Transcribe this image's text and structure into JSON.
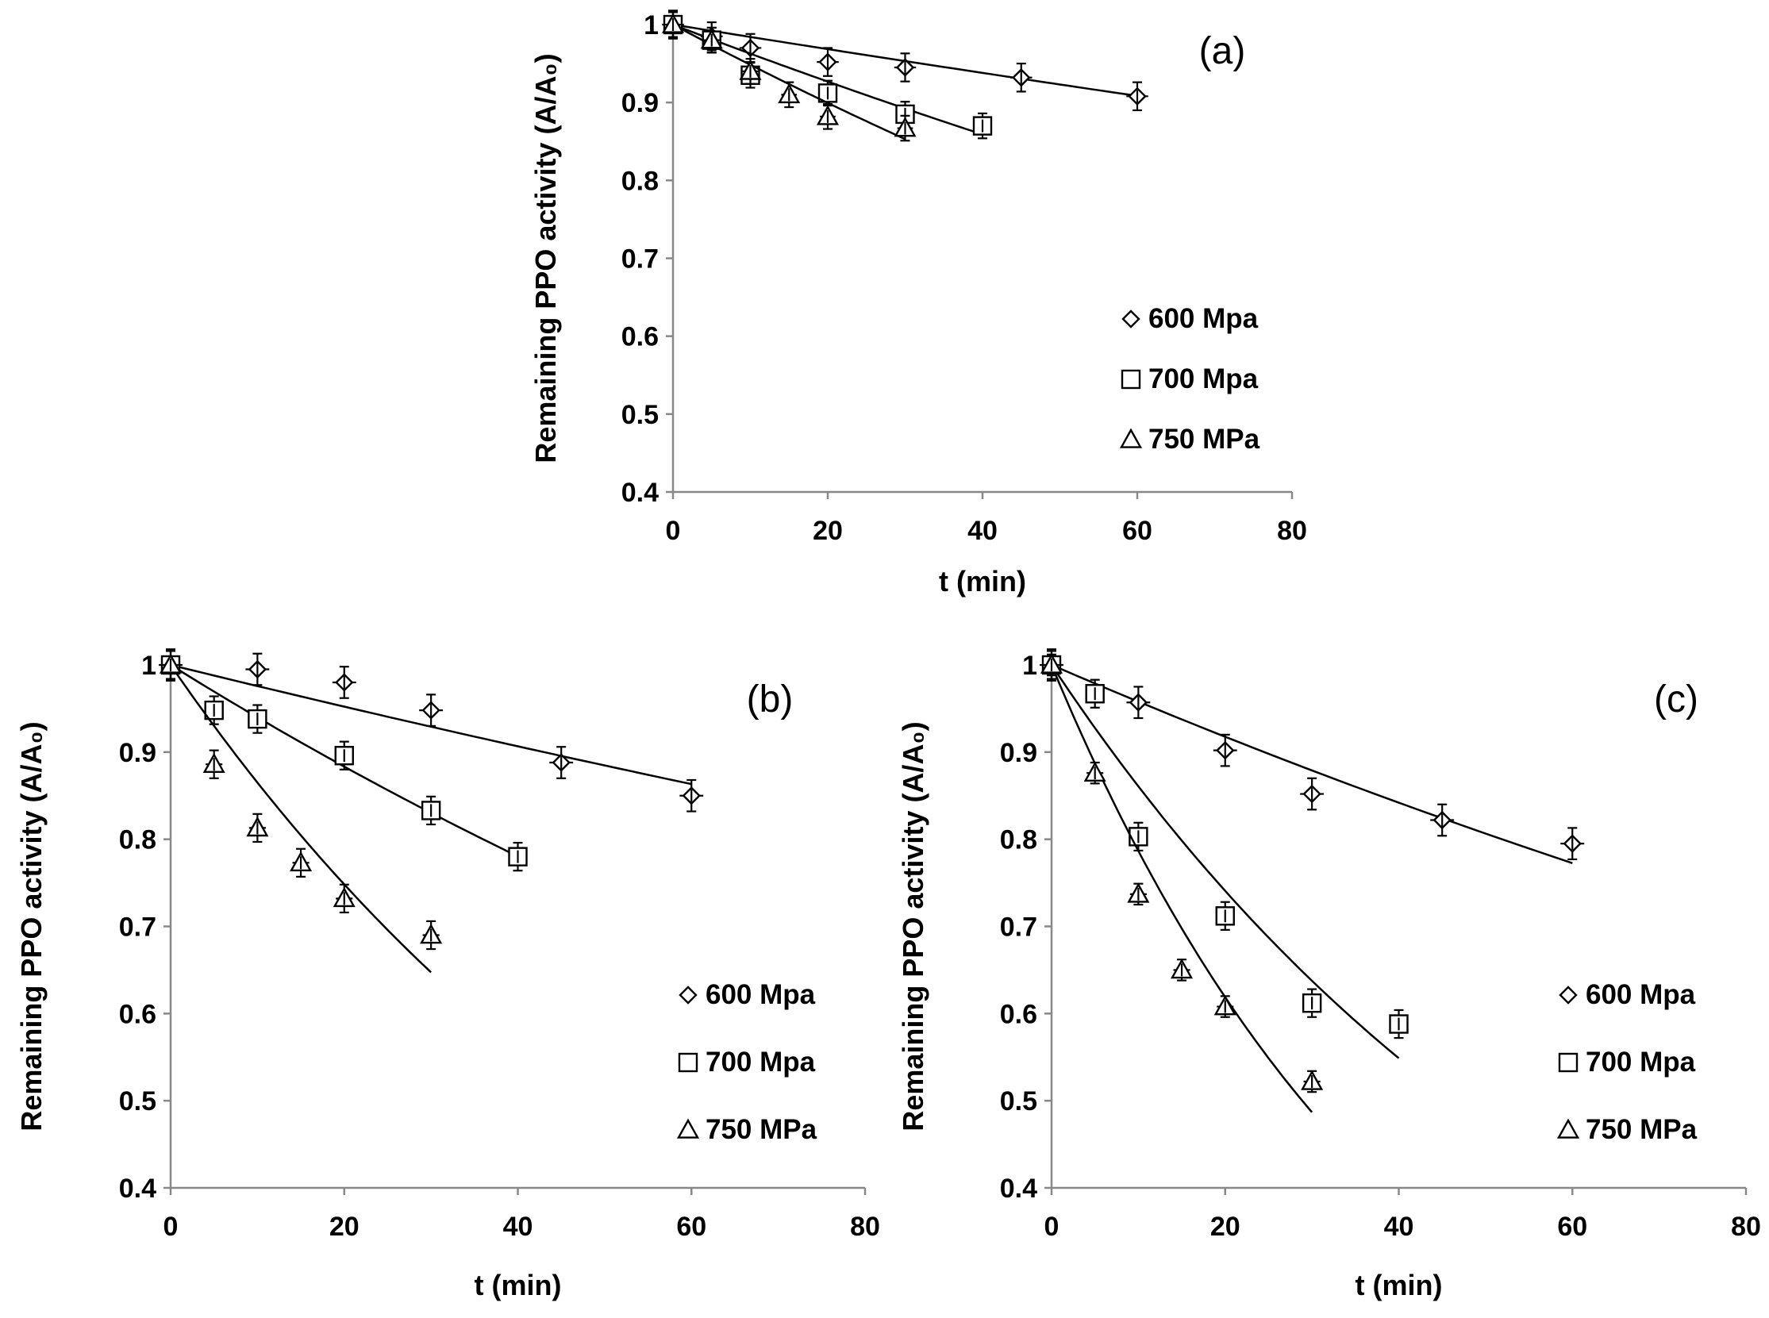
{
  "chart_data": [
    {
      "panel": "(a)",
      "type": "scatter",
      "xlabel": "t (min)",
      "ylabel": "Remaining PPO activity (A/A₀)",
      "xlim": [
        0,
        80
      ],
      "ylim": [
        0.4,
        1
      ],
      "xticks": [
        "0",
        "20",
        "40",
        "60",
        "80"
      ],
      "yticks": [
        "0.4",
        "0.5",
        "0.6",
        "0.7",
        "0.8",
        "0.9",
        "1"
      ],
      "legend_position": "right-middle",
      "series": [
        {
          "name": "600 Mpa",
          "marker": "diamond",
          "x": [
            0,
            5,
            10,
            20,
            30,
            45,
            60
          ],
          "y": [
            1.0,
            0.985,
            0.97,
            0.952,
            0.945,
            0.932,
            0.908
          ],
          "yerr": 0.018,
          "xerr": 1,
          "fit": {
            "k": 0.0016,
            "t_end": 60
          }
        },
        {
          "name": "700 Mpa",
          "marker": "square",
          "x": [
            0,
            5,
            10,
            20,
            30,
            40
          ],
          "y": [
            1.0,
            0.98,
            0.935,
            0.912,
            0.885,
            0.87
          ],
          "yerr": 0.016,
          "xerr": 0.6,
          "fit": {
            "k": 0.0038,
            "t_end": 40
          }
        },
        {
          "name": "750 MPa",
          "marker": "triangle",
          "x": [
            0,
            5,
            10,
            15,
            20,
            30
          ],
          "y": [
            1.0,
            0.98,
            0.94,
            0.91,
            0.882,
            0.867
          ],
          "yerr": 0.016,
          "xerr": 0.6,
          "fit": {
            "k": 0.0053,
            "t_end": 30
          }
        }
      ]
    },
    {
      "panel": "(b)",
      "type": "scatter",
      "xlabel": "t (min)",
      "ylabel": "Remaining PPO activity (A/A₀)",
      "xlim": [
        0,
        80
      ],
      "ylim": [
        0.4,
        1
      ],
      "xticks": [
        "0",
        "20",
        "40",
        "60",
        "80"
      ],
      "yticks": [
        "0.4",
        "0.5",
        "0.6",
        "0.7",
        "0.8",
        "0.9",
        "1"
      ],
      "legend_position": "right-bottom",
      "series": [
        {
          "name": "600 Mpa",
          "marker": "diamond",
          "x": [
            0,
            10,
            20,
            30,
            45,
            60
          ],
          "y": [
            1.0,
            0.995,
            0.98,
            0.948,
            0.888,
            0.85
          ],
          "yerr": 0.018,
          "xerr": 1,
          "fit": {
            "k": 0.00245,
            "t_end": 60
          }
        },
        {
          "name": "700 Mpa",
          "marker": "square",
          "x": [
            0,
            5,
            10,
            20,
            30,
            40
          ],
          "y": [
            1.0,
            0.948,
            0.938,
            0.896,
            0.833,
            0.78
          ],
          "yerr": 0.016,
          "xerr": 0.6,
          "fit": {
            "k": 0.0062,
            "t_end": 40
          }
        },
        {
          "name": "750 MPa",
          "marker": "triangle",
          "x": [
            0,
            5,
            10,
            15,
            20,
            30
          ],
          "y": [
            1.0,
            0.886,
            0.813,
            0.773,
            0.732,
            0.69
          ],
          "yerr": 0.016,
          "xerr": 0.6,
          "fit": {
            "k": 0.0145,
            "t_end": 30
          }
        }
      ]
    },
    {
      "panel": "(c)",
      "type": "scatter",
      "xlabel": "t (min)",
      "ylabel": "Remaining PPO activity (A/A₀)",
      "xlim": [
        0,
        80
      ],
      "ylim": [
        0.4,
        1
      ],
      "xticks": [
        "0",
        "20",
        "40",
        "60",
        "80"
      ],
      "yticks": [
        "0.4",
        "0.5",
        "0.6",
        "0.7",
        "0.8",
        "0.9",
        "1"
      ],
      "legend_position": "right-bottom",
      "series": [
        {
          "name": "600 Mpa",
          "marker": "diamond",
          "x": [
            0,
            10,
            20,
            30,
            45,
            60
          ],
          "y": [
            1.0,
            0.957,
            0.902,
            0.852,
            0.822,
            0.795
          ],
          "yerr": 0.018,
          "xerr": 1,
          "fit": {
            "k": 0.0043,
            "t_end": 60
          }
        },
        {
          "name": "700 Mpa",
          "marker": "square",
          "x": [
            0,
            5,
            10,
            20,
            30,
            40
          ],
          "y": [
            1.0,
            0.967,
            0.803,
            0.712,
            0.612,
            0.588
          ],
          "yerr": 0.016,
          "xerr": 0.6,
          "fit": {
            "k": 0.015,
            "t_end": 40
          }
        },
        {
          "name": "750 MPa",
          "marker": "triangle",
          "x": [
            0,
            5,
            10,
            15,
            20,
            30
          ],
          "y": [
            1.0,
            0.876,
            0.737,
            0.65,
            0.608,
            0.522
          ],
          "yerr": 0.012,
          "xerr": 0.6,
          "fit": {
            "k": 0.024,
            "t_end": 30
          }
        }
      ]
    }
  ]
}
